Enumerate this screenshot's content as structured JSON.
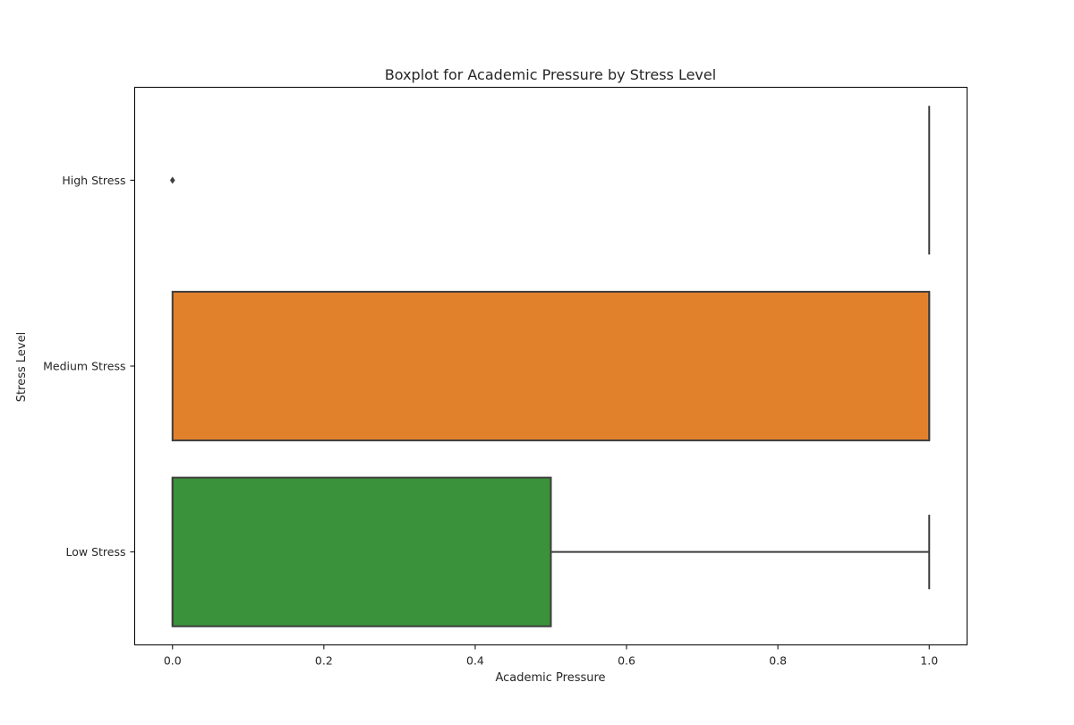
{
  "chart_data": {
    "type": "boxplot",
    "orientation": "horizontal",
    "title": "Boxplot for Academic Pressure by Stress Level",
    "xlabel": "Academic Pressure",
    "ylabel": "Stress Level",
    "xlim": [
      -0.05,
      1.05
    ],
    "xticks": [
      0.0,
      0.2,
      0.4,
      0.6,
      0.8,
      1.0
    ],
    "xtick_labels": [
      "0.0",
      "0.2",
      "0.4",
      "0.6",
      "0.8",
      "1.0"
    ],
    "grid": false,
    "legend": "none",
    "categories": [
      "High Stress",
      "Medium Stress",
      "Low Stress"
    ],
    "boxes": [
      {
        "category": "High Stress",
        "whisker_low": 1.0,
        "q1": 1.0,
        "median": 1.0,
        "q3": 1.0,
        "whisker_high": 1.0,
        "outliers": [
          0.0
        ],
        "color": "#3a76af"
      },
      {
        "category": "Medium Stress",
        "whisker_low": 0.0,
        "q1": 0.0,
        "median": 1.0,
        "q3": 1.0,
        "whisker_high": 1.0,
        "outliers": [],
        "color": "#e1812c"
      },
      {
        "category": "Low Stress",
        "whisker_low": 0.0,
        "q1": 0.0,
        "median": 0.0,
        "q3": 0.5,
        "whisker_high": 1.0,
        "outliers": [],
        "color": "#3a923a"
      }
    ],
    "line_color": "#3f3f3f"
  }
}
